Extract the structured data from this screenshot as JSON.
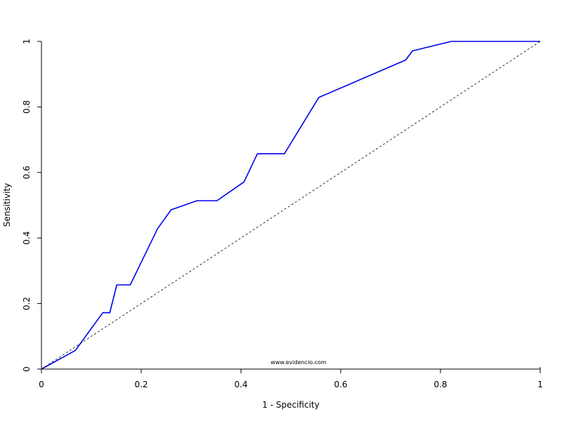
{
  "chart_data": {
    "type": "line",
    "title": "",
    "xlabel": "1 - Specificity",
    "ylabel": "Sensitivity",
    "xlim": [
      0,
      1
    ],
    "ylim": [
      0,
      1
    ],
    "grid": false,
    "x_ticks": [
      {
        "value": 0,
        "label": "0"
      },
      {
        "value": 0.2,
        "label": "0.2"
      },
      {
        "value": 0.4,
        "label": "0.4"
      },
      {
        "value": 0.6,
        "label": "0.6"
      },
      {
        "value": 0.8,
        "label": "0.8"
      },
      {
        "value": 1,
        "label": "1"
      }
    ],
    "y_ticks": [
      {
        "value": 0,
        "label": "0"
      },
      {
        "value": 0.2,
        "label": "0.2"
      },
      {
        "value": 0.4,
        "label": "0.4"
      },
      {
        "value": 0.6,
        "label": "0.6"
      },
      {
        "value": 0.8,
        "label": "0.8"
      },
      {
        "value": 1,
        "label": "1"
      }
    ],
    "series": [
      {
        "color": "#0000ee",
        "style": "solid",
        "points": [
          [
            0,
            0
          ],
          [
            0.068,
            0.057
          ],
          [
            0.123,
            0.172
          ],
          [
            0.137,
            0.172
          ],
          [
            0.151,
            0.257
          ],
          [
            0.178,
            0.257
          ],
          [
            0.233,
            0.429
          ],
          [
            0.26,
            0.486
          ],
          [
            0.312,
            0.514
          ],
          [
            0.352,
            0.514
          ],
          [
            0.406,
            0.571
          ],
          [
            0.433,
            0.657
          ],
          [
            0.487,
            0.657
          ],
          [
            0.556,
            0.829
          ],
          [
            0.73,
            0.943
          ],
          [
            0.744,
            0.971
          ],
          [
            0.822,
            1
          ],
          [
            1,
            1
          ]
        ]
      },
      {
        "color": "#000000",
        "style": "dashed",
        "points": [
          [
            0,
            0
          ],
          [
            1,
            1
          ]
        ]
      }
    ],
    "annotation": "www.evidencio.com"
  }
}
